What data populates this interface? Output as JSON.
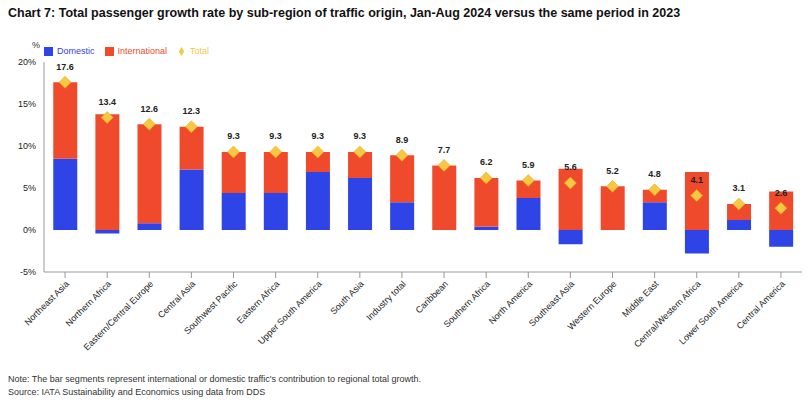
{
  "chart_data": {
    "type": "bar",
    "title": "Chart 7: Total passenger growth rate by sub-region of traffic origin, Jan-Aug 2024 versus the same period in 2023",
    "y_label": "%",
    "categories": [
      "Northeast Asia",
      "Northern Africa",
      "Eastern/Central Europe",
      "Central Asia",
      "Southwest Pacific",
      "Eastern Africa",
      "Upper South America",
      "South Asia",
      "Industry total",
      "Caribbean",
      "Southern Africa",
      "North America",
      "Southeast Asia",
      "Western Europe",
      "Middle East",
      "Central/Western Africa",
      "Lower South America",
      "Central America"
    ],
    "series": [
      {
        "name": "Domestic",
        "color": "#2f44e6",
        "values": [
          8.5,
          -0.4,
          0.8,
          7.2,
          4.4,
          4.4,
          6.9,
          6.2,
          3.3,
          0,
          0.4,
          3.8,
          -1.7,
          0,
          3.3,
          -2.8,
          1.2,
          -2.0
        ]
      },
      {
        "name": "International",
        "color": "#f04a2c",
        "values": [
          9.1,
          13.8,
          11.8,
          5.1,
          4.9,
          4.9,
          2.4,
          3.1,
          5.6,
          7.7,
          5.8,
          2.1,
          7.3,
          5.2,
          1.5,
          6.9,
          1.9,
          4.6
        ]
      },
      {
        "name": "Total",
        "type": "scatter",
        "marker": "diamond",
        "color": "#f6c744",
        "data_labels": true,
        "values": [
          17.6,
          13.4,
          12.6,
          12.3,
          9.3,
          9.3,
          9.3,
          9.3,
          8.9,
          7.7,
          6.2,
          5.9,
          5.6,
          5.2,
          4.8,
          4.1,
          3.1,
          2.6
        ]
      }
    ],
    "stacked": true,
    "ylim": [
      -5,
      20
    ],
    "yticks": [
      {
        "value": -5,
        "label": "-5%"
      },
      {
        "value": 0,
        "label": "0%"
      },
      {
        "value": 5,
        "label": "5%"
      },
      {
        "value": 10,
        "label": "10%"
      },
      {
        "value": 15,
        "label": "15%"
      },
      {
        "value": 20,
        "label": "20%"
      }
    ],
    "grid": false,
    "legend": "top-left",
    "note": "Note: The bar segments represent international or domestic traffic's contribution to regional total growth.",
    "source": "Source: IATA Sustainability and Economics using data from DDS"
  }
}
